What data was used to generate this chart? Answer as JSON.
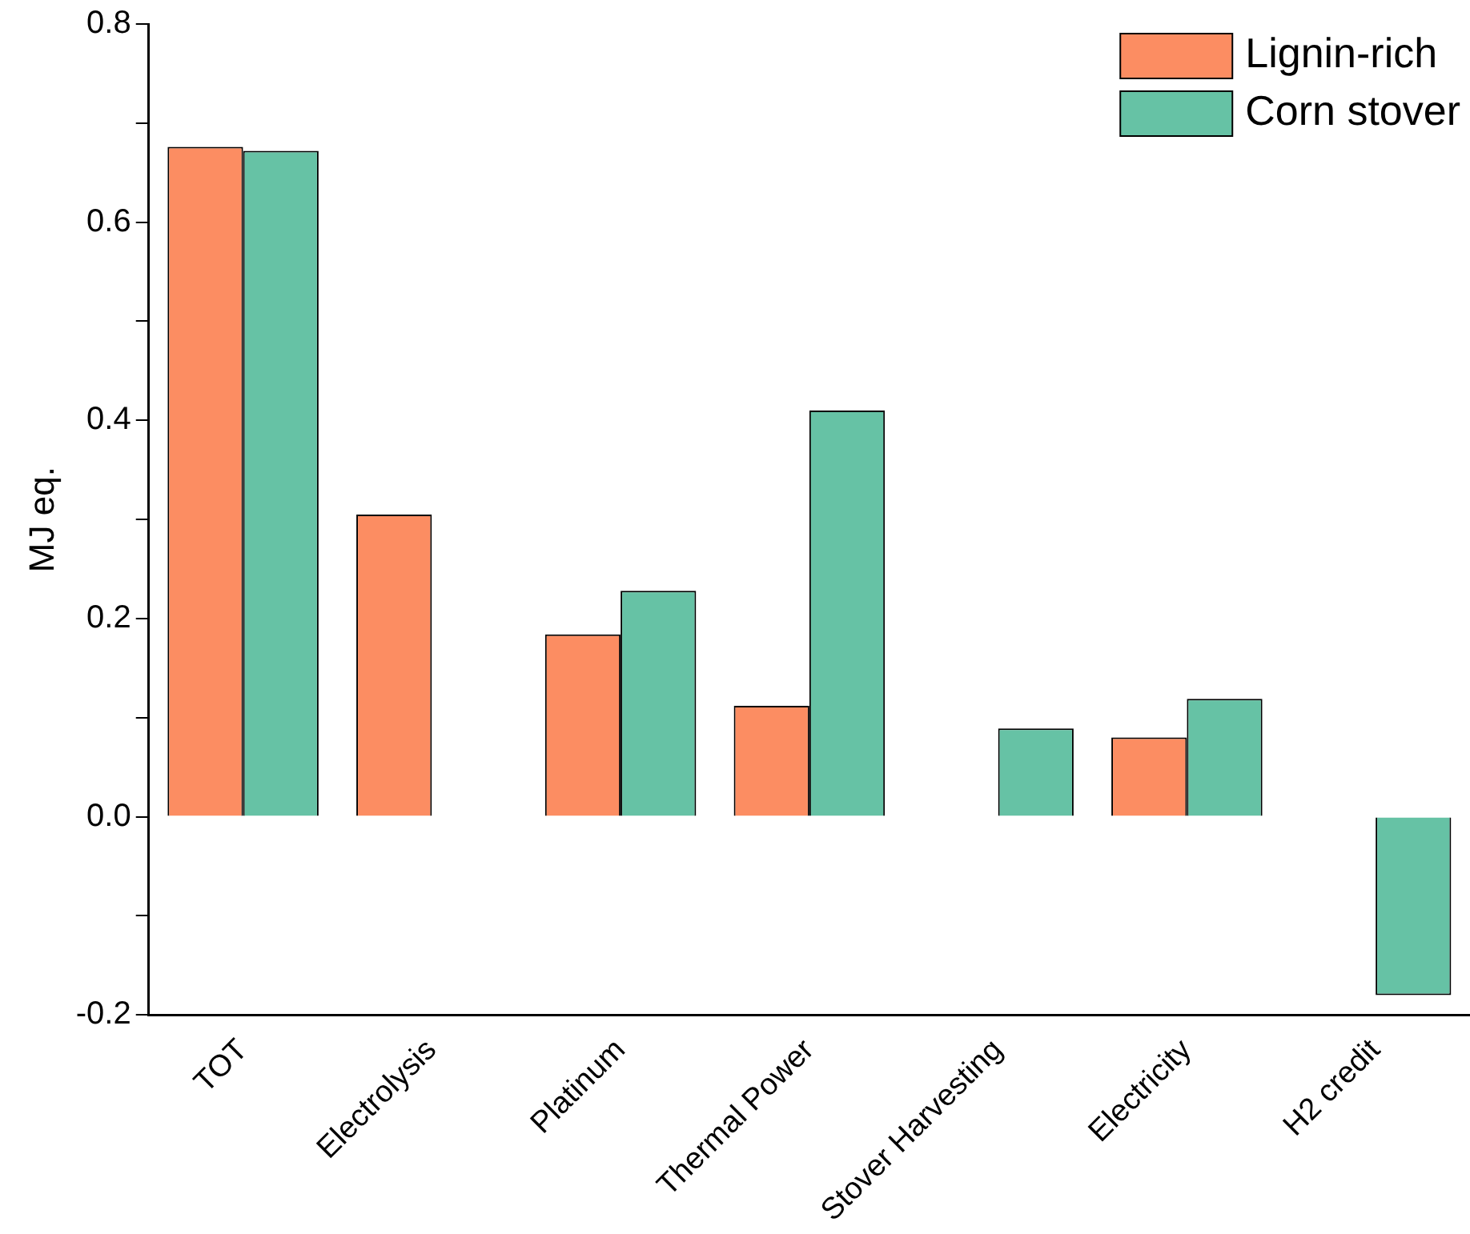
{
  "chart_data": {
    "type": "bar",
    "ylabel": "MJ eq.",
    "categories": [
      "TOT",
      "Electrolysis",
      "Platinum",
      "Thermal Power",
      "Stover Harvesting",
      "Electricity",
      "H2 credit"
    ],
    "series": [
      {
        "name": "Lignin-rich",
        "color": "#fc8d62",
        "values": [
          0.676,
          0.305,
          0.184,
          0.112,
          null,
          0.08,
          null
        ]
      },
      {
        "name": "Corn stover",
        "color": "#66c2a5",
        "values": [
          0.672,
          null,
          0.228,
          0.41,
          0.089,
          0.119,
          -0.18
        ]
      }
    ],
    "ylim": [
      -0.2,
      0.8
    ],
    "yticks": [
      {
        "value": -0.2,
        "label": "-0.2"
      },
      {
        "value": -0.1,
        "label": null
      },
      {
        "value": 0,
        "label": "0.0"
      },
      {
        "value": 0.1,
        "label": null
      },
      {
        "value": 0.2,
        "label": "0.2"
      },
      {
        "value": 0.3,
        "label": null
      },
      {
        "value": 0.4,
        "label": "0.4"
      },
      {
        "value": 0.5,
        "label": null
      },
      {
        "value": 0.6,
        "label": "0.6"
      },
      {
        "value": 0.7,
        "label": null
      },
      {
        "value": 0.8,
        "label": "0.8"
      }
    ],
    "grid": false,
    "legend": "top right"
  }
}
